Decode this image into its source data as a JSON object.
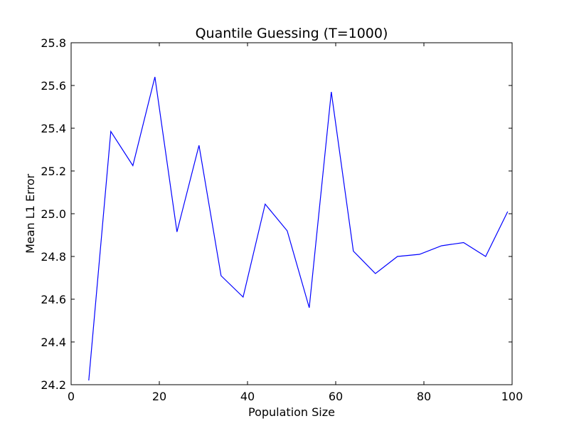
{
  "chart_data": {
    "type": "line",
    "title": "Quantile Guessing (T=1000)",
    "xlabel": "Population Size",
    "ylabel": "Mean L1 Error",
    "xlim": [
      0,
      100
    ],
    "ylim": [
      24.2,
      25.8
    ],
    "x_ticks": [
      "0",
      "20",
      "40",
      "60",
      "80",
      "100"
    ],
    "y_ticks": [
      "24.2",
      "24.4",
      "24.6",
      "24.8",
      "25.0",
      "25.2",
      "25.4",
      "25.6",
      "25.8"
    ],
    "grid": false,
    "legend": "none",
    "series": [
      {
        "color": "#0000ff",
        "x": [
          4,
          9,
          14,
          19,
          24,
          29,
          34,
          39,
          44,
          49,
          54,
          59,
          64,
          69,
          74,
          79,
          84,
          89,
          94,
          99
        ],
        "y": [
          24.22,
          25.385,
          25.225,
          25.64,
          24.915,
          25.32,
          24.71,
          24.61,
          25.045,
          24.92,
          24.56,
          25.57,
          24.825,
          24.72,
          24.8,
          24.81,
          24.85,
          24.865,
          24.8,
          25.01
        ]
      }
    ]
  }
}
